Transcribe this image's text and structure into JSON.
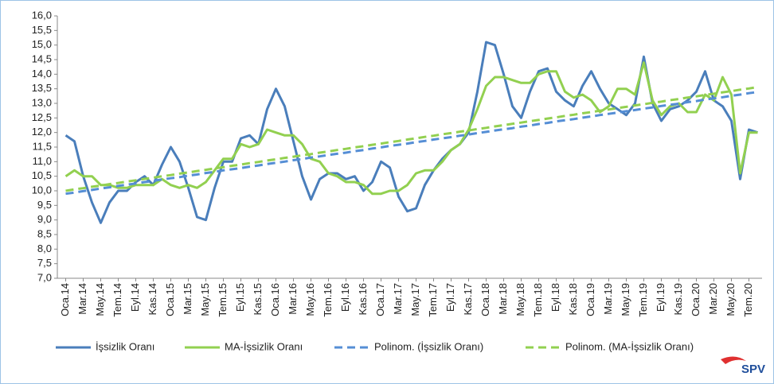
{
  "chart_data": {
    "type": "line",
    "categories": [
      "Oca.14",
      null,
      "Mar.14",
      null,
      "May.14",
      null,
      "Tem.14",
      null,
      "Eyl.14",
      null,
      "Kas.14",
      null,
      "Oca.15",
      null,
      "Mar.15",
      null,
      "May.15",
      null,
      "Tem.15",
      null,
      "Eyl.15",
      null,
      "Kas.15",
      null,
      "Oca.16",
      null,
      "Mar.16",
      null,
      "May.16",
      null,
      "Tem.16",
      null,
      "Eyl.16",
      null,
      "Kas.16",
      null,
      "Oca.17",
      null,
      "Mar.17",
      null,
      "May.17",
      null,
      "Tem.17",
      null,
      "Eyl.17",
      null,
      "Kas.17",
      null,
      "Oca.18",
      null,
      "Mar.18",
      null,
      "May.18",
      null,
      "Tem.18",
      null,
      "Eyl.18",
      null,
      "Kas.18",
      null,
      "Oca.19",
      null,
      "Mar.19",
      null,
      "May.19",
      null,
      "Tem.19",
      null,
      "Eyl.19",
      null,
      "Kas.19",
      null,
      "Oca.20",
      null,
      "Mar.20",
      null,
      "May.20",
      null,
      "Tem.20",
      null
    ],
    "series": [
      {
        "name": "İşsizlik Oranı",
        "color": "#4a7ebb",
        "dashed": false,
        "values": [
          11.9,
          11.7,
          10.5,
          9.6,
          8.9,
          9.6,
          10.0,
          10.0,
          10.3,
          10.5,
          10.2,
          10.9,
          11.5,
          11.0,
          10.1,
          9.1,
          9.0,
          10.1,
          11.0,
          11.0,
          11.8,
          11.9,
          11.6,
          12.8,
          13.5,
          12.9,
          11.7,
          10.5,
          9.7,
          10.4,
          10.6,
          10.6,
          10.4,
          10.5,
          10.0,
          10.3,
          11.0,
          10.8,
          9.8,
          9.3,
          9.4,
          10.2,
          10.7,
          11.1,
          11.4,
          11.6,
          12.0,
          13.4,
          15.1,
          15.0,
          14.0,
          12.9,
          12.5,
          13.4,
          14.1,
          14.2,
          13.4,
          13.1,
          12.9,
          13.6,
          14.1,
          13.5,
          13.0,
          12.8,
          12.6,
          13.0,
          14.6,
          13.0,
          12.4,
          12.8,
          12.9,
          13.1,
          13.4,
          14.1,
          13.1,
          12.9,
          12.4,
          10.4,
          12.1,
          12.0
        ]
      },
      {
        "name": "MA-İşsizlik Oranı",
        "color": "#92d050",
        "dashed": false,
        "values": [
          10.5,
          10.7,
          10.5,
          10.5,
          10.2,
          10.2,
          10.1,
          10.1,
          10.2,
          10.2,
          10.2,
          10.4,
          10.2,
          10.1,
          10.2,
          10.1,
          10.3,
          10.7,
          11.1,
          11.1,
          11.6,
          11.5,
          11.6,
          12.1,
          12.0,
          11.9,
          11.9,
          11.6,
          11.1,
          11.0,
          10.6,
          10.5,
          10.3,
          10.3,
          10.2,
          9.9,
          9.9,
          10.0,
          10.0,
          10.2,
          10.6,
          10.7,
          10.7,
          11.0,
          11.4,
          11.6,
          12.1,
          12.8,
          13.6,
          13.9,
          13.9,
          13.8,
          13.7,
          13.7,
          14.0,
          14.1,
          14.1,
          13.4,
          13.2,
          13.3,
          13.1,
          12.7,
          12.9,
          13.5,
          13.5,
          13.3,
          14.4,
          13.1,
          12.6,
          12.9,
          13.0,
          12.7,
          12.7,
          13.3,
          13.1,
          13.9,
          13.3,
          10.6,
          12.0,
          12.0
        ]
      },
      {
        "name": "Polinom. (İşsizlik Oranı)",
        "color": "#558ed5",
        "dashed": true,
        "values": [
          9.9,
          9.94,
          9.99,
          10.03,
          10.08,
          10.12,
          10.17,
          10.21,
          10.25,
          10.3,
          10.34,
          10.39,
          10.43,
          10.47,
          10.52,
          10.56,
          10.61,
          10.65,
          10.7,
          10.74,
          10.78,
          10.83,
          10.87,
          10.92,
          10.96,
          11.0,
          11.05,
          11.09,
          11.14,
          11.18,
          11.23,
          11.27,
          11.31,
          11.36,
          11.4,
          11.45,
          11.49,
          11.54,
          11.58,
          11.62,
          11.67,
          11.71,
          11.76,
          11.8,
          11.84,
          11.89,
          11.93,
          11.98,
          12.02,
          12.07,
          12.11,
          12.15,
          12.2,
          12.24,
          12.29,
          12.33,
          12.38,
          12.42,
          12.46,
          12.51,
          12.55,
          12.6,
          12.64,
          12.68,
          12.73,
          12.77,
          12.82,
          12.86,
          12.91,
          12.95,
          12.99,
          13.04,
          13.08,
          13.13,
          13.17,
          13.21,
          13.26,
          13.3,
          13.35,
          13.39
        ]
      },
      {
        "name": "Polinom. (MA-İşsizlik Oranı)",
        "color": "#92d050",
        "dashed": true,
        "values": [
          10.0,
          10.05,
          10.09,
          10.14,
          10.18,
          10.23,
          10.27,
          10.32,
          10.36,
          10.41,
          10.45,
          10.5,
          10.54,
          10.59,
          10.63,
          10.68,
          10.72,
          10.77,
          10.81,
          10.86,
          10.9,
          10.95,
          10.99,
          11.04,
          11.08,
          11.13,
          11.17,
          11.22,
          11.26,
          11.31,
          11.35,
          11.4,
          11.44,
          11.49,
          11.53,
          11.58,
          11.62,
          11.67,
          11.71,
          11.76,
          11.8,
          11.85,
          11.89,
          11.94,
          11.98,
          12.03,
          12.07,
          12.12,
          12.16,
          12.21,
          12.25,
          12.3,
          12.34,
          12.39,
          12.43,
          12.48,
          12.52,
          12.57,
          12.61,
          12.66,
          12.7,
          12.75,
          12.79,
          12.84,
          12.88,
          12.93,
          12.97,
          13.02,
          13.06,
          13.11,
          13.15,
          13.2,
          13.24,
          13.29,
          13.33,
          13.38,
          13.42,
          13.47,
          13.51,
          13.56
        ]
      }
    ],
    "ylim": [
      7,
      16
    ],
    "yticks": [
      {
        "value": 7,
        "label": "7,0"
      },
      {
        "value": 7.5,
        "label": "7,5"
      },
      {
        "value": 8,
        "label": "8,0"
      },
      {
        "value": 8.5,
        "label": "8,5"
      },
      {
        "value": 9,
        "label": "9,0"
      },
      {
        "value": 9.5,
        "label": "9,5"
      },
      {
        "value": 10,
        "label": "10,0"
      },
      {
        "value": 10.5,
        "label": "10,5"
      },
      {
        "value": 11,
        "label": "11,0"
      },
      {
        "value": 11.5,
        "label": "11,5"
      },
      {
        "value": 12,
        "label": "12,0"
      },
      {
        "value": 12.5,
        "label": "12,5"
      },
      {
        "value": 13,
        "label": "13,0"
      },
      {
        "value": 13.5,
        "label": "13,5"
      },
      {
        "value": 14,
        "label": "14,0"
      },
      {
        "value": 14.5,
        "label": "14,5"
      },
      {
        "value": 15,
        "label": "15,0"
      },
      {
        "value": 15.5,
        "label": "15,5"
      },
      {
        "value": 16,
        "label": "16,0"
      }
    ],
    "grid": false,
    "legend": "bottom",
    "logo": "SPV"
  }
}
